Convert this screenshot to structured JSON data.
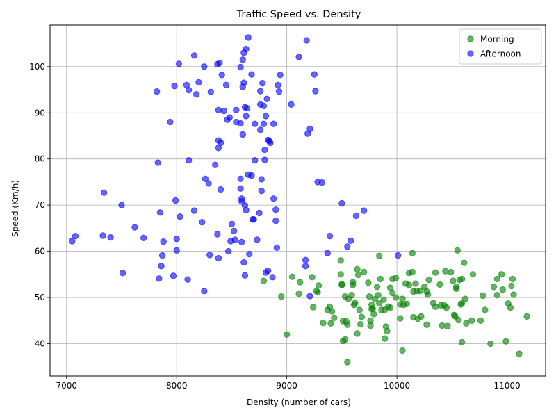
{
  "chart_data": {
    "type": "scatter",
    "title": "Traffic Speed vs. Density",
    "xlabel": "Density (number of cars)",
    "ylabel": "Speed (Km/h)",
    "xlim": [
      6850,
      11350
    ],
    "ylim": [
      33,
      109
    ],
    "xticks": [
      7000,
      8000,
      9000,
      10000,
      11000
    ],
    "yticks": [
      40,
      50,
      60,
      70,
      80,
      90,
      100
    ],
    "grid": true,
    "legend_position": "top-right",
    "series": [
      {
        "name": "Morning",
        "color": "#008000",
        "points": [
          [
            8790,
            53.6
          ],
          [
            8950,
            50.2
          ],
          [
            9000,
            42.0
          ],
          [
            9050,
            54.5
          ],
          [
            9110,
            50.8
          ],
          [
            9120,
            53.3
          ],
          [
            9230,
            54.4
          ],
          [
            9240,
            47.9
          ],
          [
            9270,
            51.4
          ],
          [
            9280,
            51.1
          ],
          [
            9290,
            52.6
          ],
          [
            9330,
            44.5
          ],
          [
            9370,
            47.3
          ],
          [
            9390,
            48.0
          ],
          [
            9400,
            44.4
          ],
          [
            9410,
            47.0
          ],
          [
            9430,
            45.6
          ],
          [
            9490,
            58.0
          ],
          [
            9490,
            55.0
          ],
          [
            9500,
            52.9
          ],
          [
            9500,
            52.7
          ],
          [
            9510,
            40.6
          ],
          [
            9510,
            44.9
          ],
          [
            9530,
            40.9
          ],
          [
            9530,
            50.2
          ],
          [
            9540,
            44.8
          ],
          [
            9550,
            36.0
          ],
          [
            9550,
            44.1
          ],
          [
            9560,
            49.7
          ],
          [
            9590,
            50.5
          ],
          [
            9600,
            53.3
          ],
          [
            9600,
            52.7
          ],
          [
            9610,
            48.4
          ],
          [
            9620,
            48.8
          ],
          [
            9640,
            42.2
          ],
          [
            9640,
            56.1
          ],
          [
            9650,
            54.9
          ],
          [
            9660,
            47.3
          ],
          [
            9670,
            44.2
          ],
          [
            9680,
            45.8
          ],
          [
            9700,
            55.5
          ],
          [
            9740,
            53.2
          ],
          [
            9750,
            50.2
          ],
          [
            9760,
            45.0
          ],
          [
            9760,
            43.9
          ],
          [
            9770,
            48.4
          ],
          [
            9770,
            47.5
          ],
          [
            9780,
            47.6
          ],
          [
            9790,
            46.4
          ],
          [
            9800,
            49.6
          ],
          [
            9820,
            52.3
          ],
          [
            9830,
            50.5
          ],
          [
            9840,
            48.7
          ],
          [
            9840,
            59.0
          ],
          [
            9850,
            54.0
          ],
          [
            9860,
            47.3
          ],
          [
            9880,
            49.5
          ],
          [
            9890,
            47.3
          ],
          [
            9890,
            41.1
          ],
          [
            9900,
            43.7
          ],
          [
            9910,
            42.7
          ],
          [
            9920,
            48.0
          ],
          [
            9940,
            52.1
          ],
          [
            9940,
            47.8
          ],
          [
            9960,
            51.0
          ],
          [
            9960,
            54.0
          ],
          [
            9990,
            54.2
          ],
          [
            9990,
            50.0
          ],
          [
            10030,
            48.5
          ],
          [
            10030,
            45.5
          ],
          [
            10050,
            49.7
          ],
          [
            10050,
            38.5
          ],
          [
            10060,
            48.4
          ],
          [
            10080,
            53.0
          ],
          [
            10090,
            48.6
          ],
          [
            10110,
            55.3
          ],
          [
            10110,
            52.7
          ],
          [
            10140,
            59.6
          ],
          [
            10140,
            55.5
          ],
          [
            10150,
            51.3
          ],
          [
            10150,
            45.7
          ],
          [
            10170,
            53.0
          ],
          [
            10180,
            51.4
          ],
          [
            10190,
            45.4
          ],
          [
            10210,
            51.4
          ],
          [
            10220,
            45.9
          ],
          [
            10250,
            52.3
          ],
          [
            10270,
            44.1
          ],
          [
            10270,
            51.3
          ],
          [
            10280,
            50.6
          ],
          [
            10290,
            53.8
          ],
          [
            10330,
            48.8
          ],
          [
            10350,
            55.4
          ],
          [
            10350,
            48.0
          ],
          [
            10390,
            52.8
          ],
          [
            10400,
            48.3
          ],
          [
            10410,
            43.9
          ],
          [
            10430,
            48.3
          ],
          [
            10440,
            55.7
          ],
          [
            10450,
            47.8
          ],
          [
            10460,
            43.8
          ],
          [
            10490,
            55.5
          ],
          [
            10510,
            53.6
          ],
          [
            10520,
            46.2
          ],
          [
            10530,
            45.9
          ],
          [
            10540,
            51.9
          ],
          [
            10540,
            52.3
          ],
          [
            10550,
            60.2
          ],
          [
            10560,
            45.1
          ],
          [
            10570,
            53.8
          ],
          [
            10580,
            48.5
          ],
          [
            10590,
            48.7
          ],
          [
            10590,
            54.0
          ],
          [
            10590,
            40.3
          ],
          [
            10610,
            57.5
          ],
          [
            10620,
            49.7
          ],
          [
            10630,
            44.4
          ],
          [
            10680,
            45.0
          ],
          [
            10690,
            55.0
          ],
          [
            10760,
            45.0
          ],
          [
            10780,
            50.4
          ],
          [
            10800,
            47.3
          ],
          [
            10850,
            40.0
          ],
          [
            10880,
            52.3
          ],
          [
            10910,
            54.0
          ],
          [
            10910,
            50.5
          ],
          [
            10950,
            55.0
          ],
          [
            10960,
            51.7
          ],
          [
            10990,
            40.5
          ],
          [
            11010,
            48.7
          ],
          [
            11030,
            47.8
          ],
          [
            11040,
            52.5
          ],
          [
            11050,
            54.0
          ],
          [
            11060,
            50.6
          ],
          [
            11110,
            37.8
          ],
          [
            11180,
            45.9
          ]
        ]
      },
      {
        "name": "Afternoon",
        "color": "#0000ff",
        "points": [
          [
            7050,
            62.2
          ],
          [
            7080,
            63.3
          ],
          [
            7330,
            63.4
          ],
          [
            7340,
            72.7
          ],
          [
            7400,
            63.0
          ],
          [
            7500,
            70.0
          ],
          [
            7510,
            55.3
          ],
          [
            7620,
            65.2
          ],
          [
            7700,
            62.9
          ],
          [
            7820,
            94.6
          ],
          [
            7830,
            79.2
          ],
          [
            7840,
            54.1
          ],
          [
            7850,
            68.4
          ],
          [
            7860,
            56.8
          ],
          [
            7870,
            59.1
          ],
          [
            7880,
            62.1
          ],
          [
            7940,
            88.0
          ],
          [
            7970,
            54.7
          ],
          [
            7980,
            95.8
          ],
          [
            7990,
            71.0
          ],
          [
            8000,
            60.2
          ],
          [
            8000,
            62.7
          ],
          [
            8020,
            100.6
          ],
          [
            8030,
            67.5
          ],
          [
            8090,
            96.0
          ],
          [
            8100,
            53.9
          ],
          [
            8110,
            94.9
          ],
          [
            8110,
            79.7
          ],
          [
            8160,
            102.4
          ],
          [
            8160,
            68.8
          ],
          [
            8180,
            94.0
          ],
          [
            8200,
            96.6
          ],
          [
            8230,
            66.3
          ],
          [
            8250,
            51.4
          ],
          [
            8250,
            100.0
          ],
          [
            8260,
            75.7
          ],
          [
            8290,
            74.7
          ],
          [
            8300,
            59.2
          ],
          [
            8310,
            94.5
          ],
          [
            8350,
            78.7
          ],
          [
            8370,
            63.7
          ],
          [
            8370,
            100.5
          ],
          [
            8380,
            90.6
          ],
          [
            8380,
            84.0
          ],
          [
            8380,
            82.4
          ],
          [
            8380,
            58.5
          ],
          [
            8390,
            100.8
          ],
          [
            8400,
            73.4
          ],
          [
            8400,
            83.5
          ],
          [
            8410,
            98.2
          ],
          [
            8430,
            90.4
          ],
          [
            8450,
            96.0
          ],
          [
            8460,
            88.5
          ],
          [
            8470,
            60.0
          ],
          [
            8480,
            89.0
          ],
          [
            8490,
            62.2
          ],
          [
            8500,
            65.9
          ],
          [
            8520,
            64.4
          ],
          [
            8530,
            62.5
          ],
          [
            8540,
            90.6
          ],
          [
            8540,
            88.0
          ],
          [
            8580,
            99.9
          ],
          [
            8580,
            87.7
          ],
          [
            8580,
            75.7
          ],
          [
            8580,
            73.6
          ],
          [
            8590,
            71.4
          ],
          [
            8590,
            70.8
          ],
          [
            8590,
            62.0
          ],
          [
            8600,
            101.5
          ],
          [
            8600,
            95.6
          ],
          [
            8600,
            85.3
          ],
          [
            8610,
            103.0
          ],
          [
            8610,
            96.5
          ],
          [
            8610,
            57.6
          ],
          [
            8620,
            91.2
          ],
          [
            8620,
            54.8
          ],
          [
            8620,
            69.9
          ],
          [
            8630,
            68.9
          ],
          [
            8630,
            89.3
          ],
          [
            8630,
            103.8
          ],
          [
            8640,
            91.0
          ],
          [
            8650,
            106.3
          ],
          [
            8650,
            76.6
          ],
          [
            8660,
            59.4
          ],
          [
            8680,
            98.3
          ],
          [
            8680,
            76.4
          ],
          [
            8690,
            66.9
          ],
          [
            8700,
            66.9
          ],
          [
            8710,
            79.7
          ],
          [
            8710,
            87.6
          ],
          [
            8730,
            62.5
          ],
          [
            8750,
            68.3
          ],
          [
            8760,
            94.7
          ],
          [
            8760,
            91.8
          ],
          [
            8760,
            86.3
          ],
          [
            8770,
            75.6
          ],
          [
            8770,
            73.1
          ],
          [
            8780,
            96.4
          ],
          [
            8790,
            91.5
          ],
          [
            8790,
            87.6
          ],
          [
            8800,
            82.0
          ],
          [
            8800,
            79.8
          ],
          [
            8810,
            89.3
          ],
          [
            8810,
            55.4
          ],
          [
            8820,
            93.0
          ],
          [
            8830,
            84.1
          ],
          [
            8830,
            55.8
          ],
          [
            8840,
            83.9
          ],
          [
            8850,
            83.5
          ],
          [
            8870,
            54.4
          ],
          [
            8880,
            71.4
          ],
          [
            8880,
            87.6
          ],
          [
            8900,
            66.6
          ],
          [
            8900,
            69.0
          ],
          [
            8910,
            60.8
          ],
          [
            8920,
            96.0
          ],
          [
            8930,
            94.6
          ],
          [
            8940,
            98.2
          ],
          [
            9040,
            91.8
          ],
          [
            9110,
            102.1
          ],
          [
            9170,
            58.1
          ],
          [
            9170,
            56.8
          ],
          [
            9180,
            105.7
          ],
          [
            9190,
            85.5
          ],
          [
            9210,
            86.5
          ],
          [
            9210,
            50.3
          ],
          [
            9250,
            98.3
          ],
          [
            9260,
            94.7
          ],
          [
            9280,
            75.0
          ],
          [
            9320,
            74.9
          ],
          [
            9370,
            59.6
          ],
          [
            9390,
            63.3
          ],
          [
            9500,
            70.4
          ],
          [
            9550,
            61.0
          ],
          [
            9580,
            62.3
          ],
          [
            9630,
            67.7
          ],
          [
            9700,
            68.8
          ],
          [
            10010,
            59.1
          ]
        ]
      }
    ]
  }
}
